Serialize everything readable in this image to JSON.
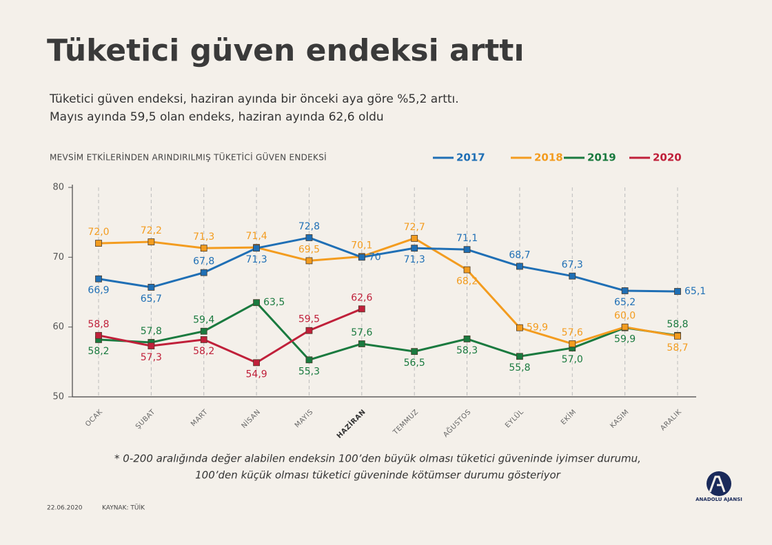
{
  "chart_data": {
    "type": "line",
    "title": "Tüketici güven endeksi arttı",
    "subtitle": [
      "Tüketici güven endeksi, haziran ayında bir önceki aya göre %5,2 arttı.",
      "Mayıs ayında 59,5 olan endeks, haziran ayında 62,6 oldu"
    ],
    "chart_label": "MEVSİM ETKİLERİNDEN ARINDIRILMIŞ TÜKETİCİ GÜVEN ENDEKSİ",
    "categories": [
      "OCAK",
      "ŞUBAT",
      "MART",
      "NİSAN",
      "MAYIS",
      "HAZİRAN",
      "TEMMUZ",
      "AĞUSTOS",
      "EYLÜL",
      "EKİM",
      "KASIM",
      "ARALIK"
    ],
    "highlighted_category": 5,
    "ylim": [
      50,
      80
    ],
    "yticks": [
      50,
      60,
      70,
      80
    ],
    "series": [
      {
        "name": "2017",
        "color": "#1f6fb5",
        "values": [
          66.9,
          65.7,
          67.8,
          71.3,
          72.8,
          70,
          71.3,
          71.1,
          68.7,
          67.3,
          65.2,
          65.1
        ],
        "value_labels": [
          "66,9",
          "65,7",
          "67,8",
          "71,3",
          "72,8",
          "70",
          "71,3",
          "71,1",
          "68,7",
          "67,3",
          "65,2",
          "65,1"
        ]
      },
      {
        "name": "2018",
        "color": "#f39c1f",
        "values": [
          72.0,
          72.2,
          71.3,
          71.4,
          69.5,
          70.1,
          72.7,
          68.2,
          59.9,
          57.6,
          60.0,
          58.7
        ],
        "value_labels": [
          "72,0",
          "72,2",
          "71,3",
          "71,4",
          "69,5",
          "70,1",
          "72,7",
          "68,2",
          "59,9",
          "57,6",
          "60,0",
          "58,7"
        ]
      },
      {
        "name": "2019",
        "color": "#1a7a3f",
        "values": [
          58.2,
          57.8,
          59.4,
          63.5,
          55.3,
          57.6,
          56.5,
          58.3,
          55.8,
          57.0,
          59.9,
          58.8
        ],
        "value_labels": [
          "58,2",
          "57,8",
          "59,4",
          "63,5",
          "55,3",
          "57,6",
          "56,5",
          "58,3",
          "55,8",
          "57,0",
          "59,9",
          "58,8"
        ]
      },
      {
        "name": "2020",
        "color": "#c0203a",
        "values": [
          58.8,
          57.3,
          58.2,
          54.9,
          59.5,
          62.6,
          null,
          null,
          null,
          null,
          null,
          null
        ],
        "value_labels": [
          "58,8",
          "57,3",
          "58,2",
          "54,9",
          "59,5",
          "62,6",
          null,
          null,
          null,
          null,
          null,
          null
        ]
      }
    ],
    "footnote": [
      "* 0-200 aralığında değer alabilen endeksin 100’den büyük olması tüketici güveninde iyimser durumu,",
      "100’den küçük olması tüketici güveninde kötümser durumu gösteriyor"
    ],
    "date": "22.06.2020",
    "source": "KAYNAK: TÜİK",
    "logo": "ANADOLU AJANSI"
  }
}
